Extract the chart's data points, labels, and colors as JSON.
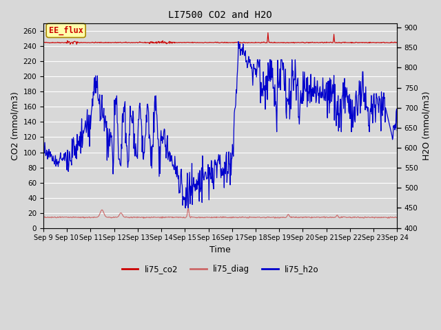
{
  "title": "LI7500 CO2 and H2O",
  "xlabel": "Time",
  "ylabel_left": "CO2 (mmol/m3)",
  "ylabel_right": "H2O (mmol/m3)",
  "ylim_left": [
    0,
    270
  ],
  "ylim_right": [
    400,
    910
  ],
  "xtick_labels": [
    "Sep 9",
    "Sep 10",
    "Sep 11",
    "Sep 12",
    "Sep 13",
    "Sep 14",
    "Sep 15",
    "Sep 16",
    "Sep 17",
    "Sep 18",
    "Sep 19",
    "Sep 20",
    "Sep 21",
    "Sep 22",
    "Sep 23",
    "Sep 24"
  ],
  "yticks_left": [
    0,
    20,
    40,
    60,
    80,
    100,
    120,
    140,
    160,
    180,
    200,
    220,
    240,
    260
  ],
  "yticks_right": [
    400,
    450,
    500,
    550,
    600,
    650,
    700,
    750,
    800,
    850,
    900
  ],
  "background_color": "#d8d8d8",
  "grid_color": "#f0f0f0",
  "annotation_text": "EE_flux",
  "annotation_color": "#cc0000",
  "annotation_bg": "#ffffaa",
  "line_co2_color": "#cc0000",
  "line_diag_color": "#cc6666",
  "line_h2o_color": "#0000cc",
  "legend_labels": [
    "li75_co2",
    "li75_diag",
    "li75_h2o"
  ]
}
